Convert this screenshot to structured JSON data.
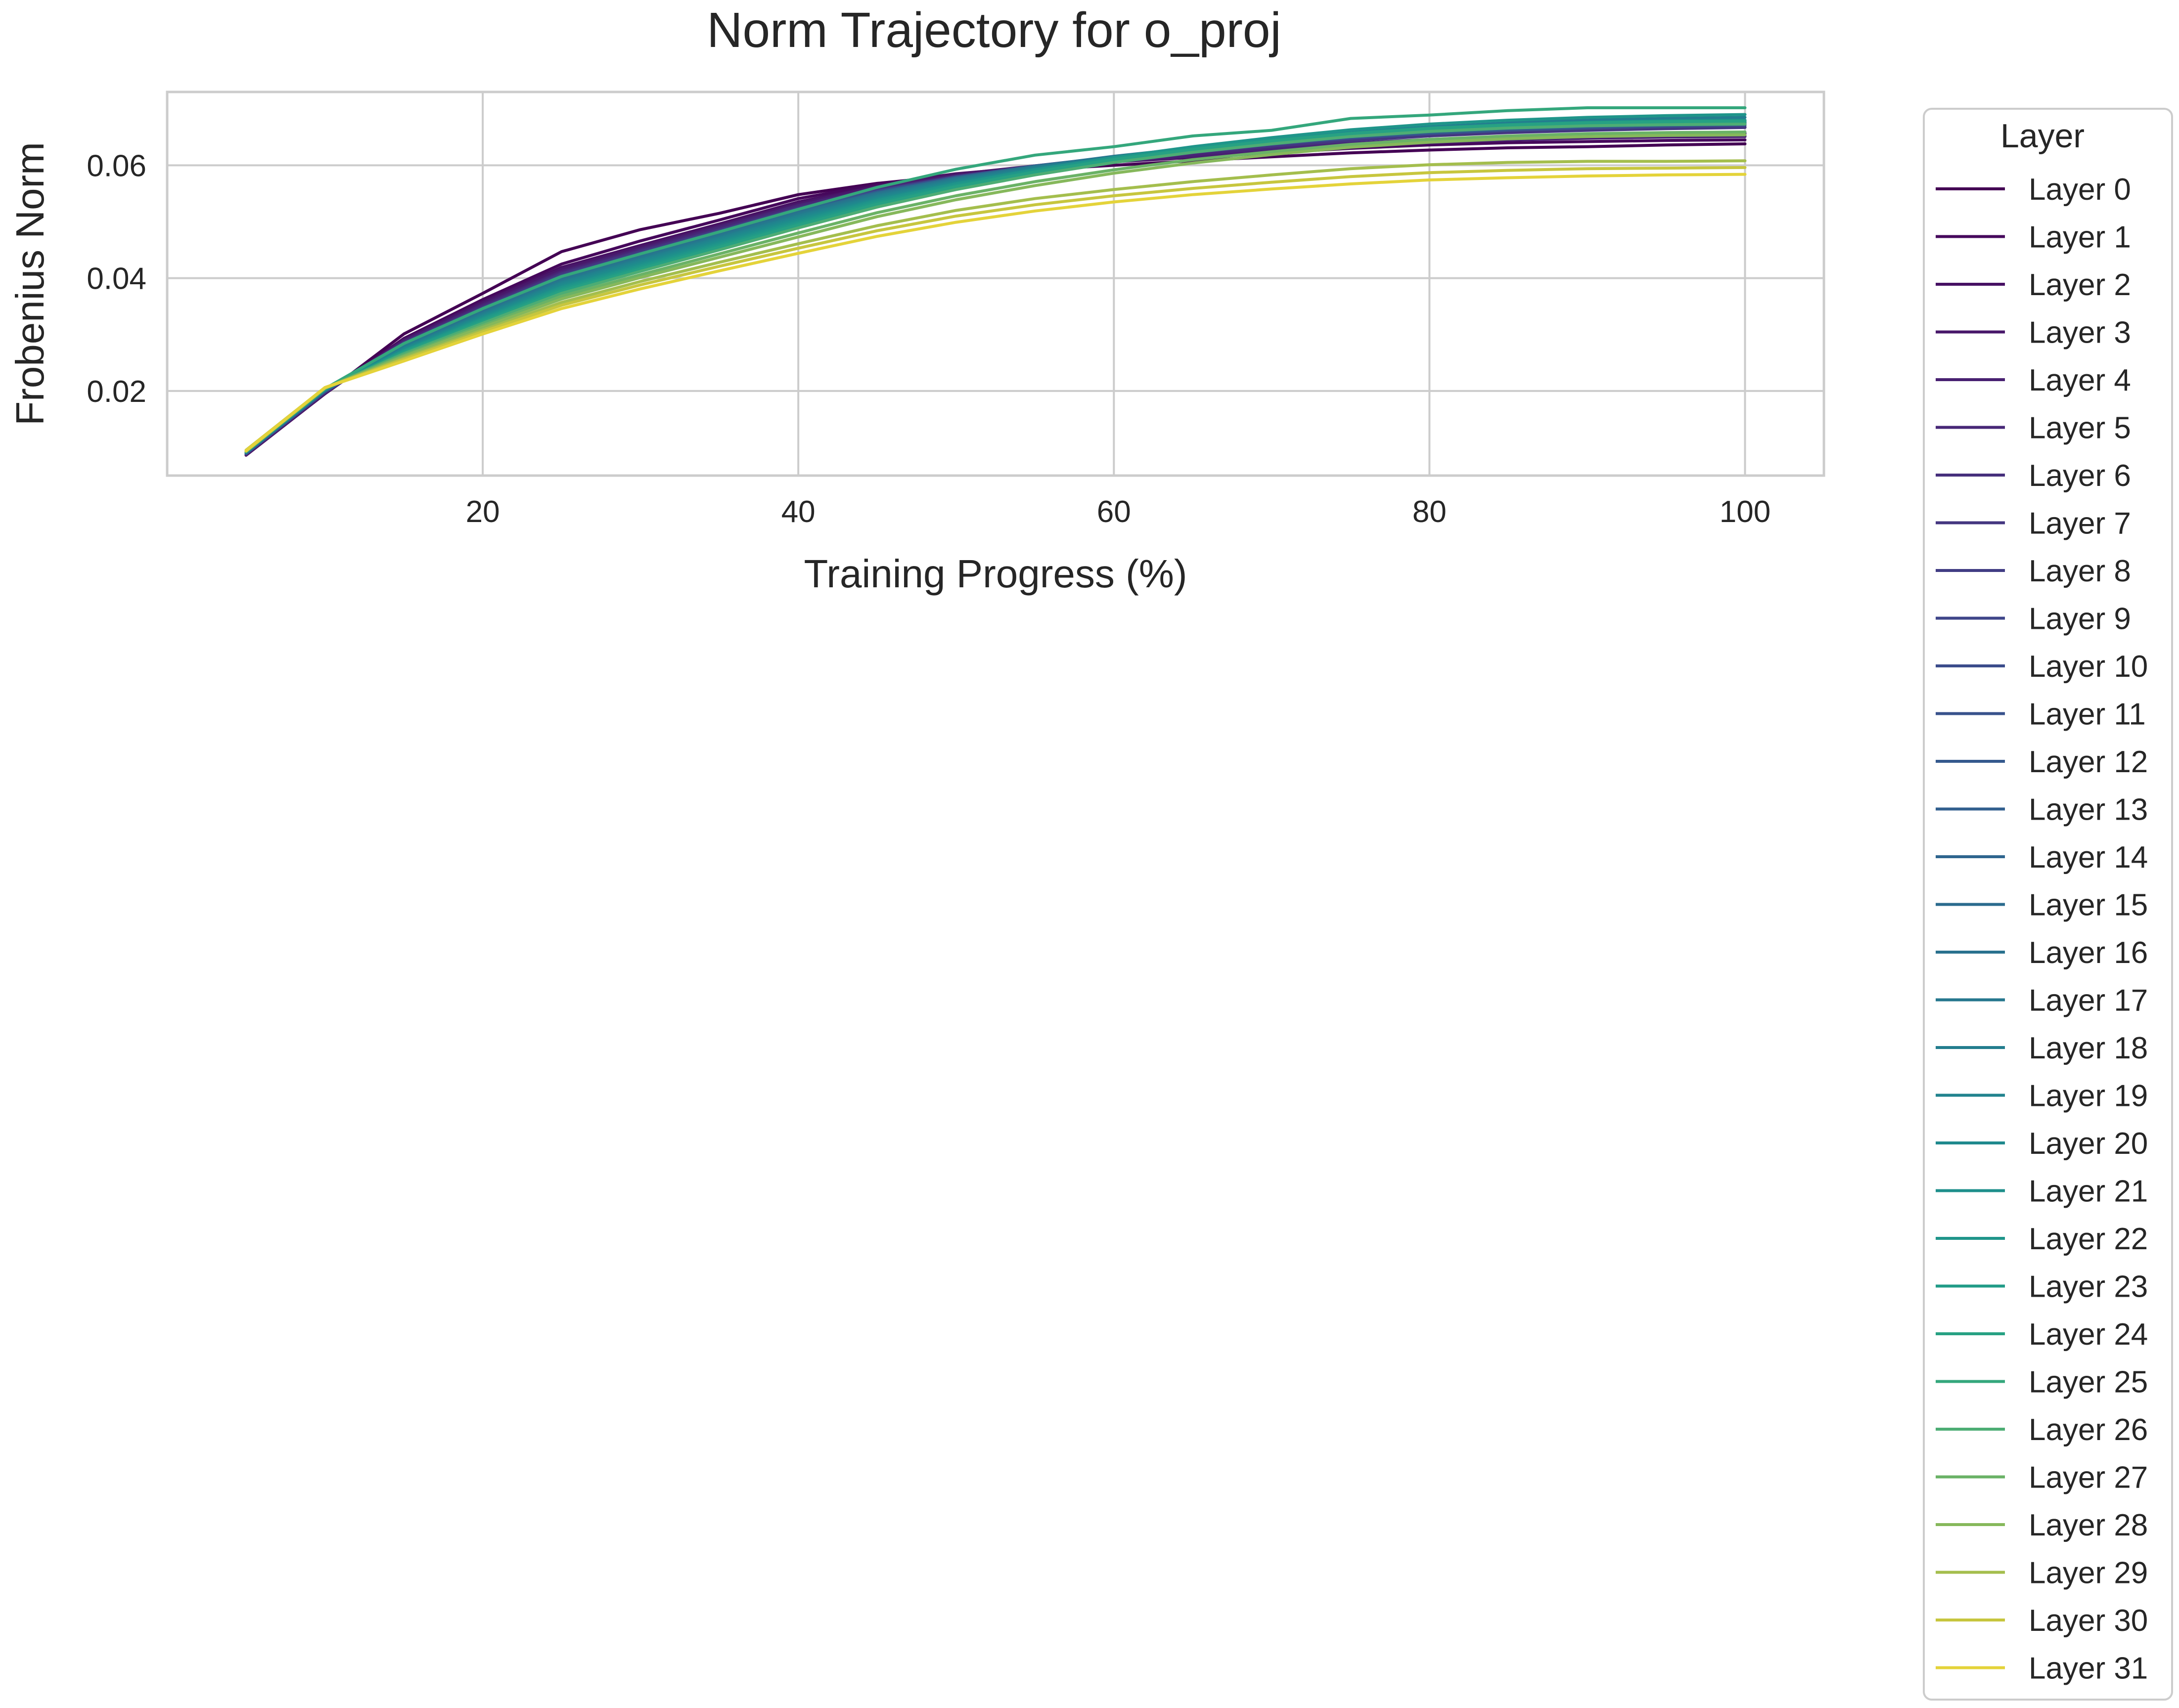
{
  "chart_data": {
    "type": "line",
    "title": "Norm Trajectory for o_proj",
    "xlabel": "Training Progress (%)",
    "ylabel": "Frobenius Norm",
    "xlim": [
      0,
      105
    ],
    "ylim": [
      0.005,
      0.073
    ],
    "xticks": [
      20,
      40,
      60,
      80,
      100
    ],
    "yticks": [
      0.02,
      0.04,
      0.06
    ],
    "xtick_labels": [
      "20",
      "40",
      "60",
      "80",
      "100"
    ],
    "ytick_labels": [
      "0.02",
      "0.04",
      "0.06"
    ],
    "grid": true,
    "legend": {
      "title": "Layer",
      "placement": "outside-right"
    },
    "x": [
      5,
      10,
      15,
      20,
      25,
      30,
      35,
      40,
      45,
      50,
      55,
      60,
      65,
      70,
      75,
      80,
      85,
      90,
      95,
      100
    ],
    "series": [
      {
        "name": "Layer 0",
        "color": "#440154",
        "values": [
          0.0087,
          0.0195,
          0.0301,
          0.0373,
          0.0447,
          0.0486,
          0.0515,
          0.0548,
          0.0568,
          0.0582,
          0.0592,
          0.06,
          0.0608,
          0.0615,
          0.0622,
          0.0627,
          0.0631,
          0.0633,
          0.0636,
          0.0638
        ]
      },
      {
        "name": "Layer 1",
        "color": "#46085c",
        "values": [
          0.0086,
          0.0195,
          0.0293,
          0.0362,
          0.0425,
          0.0466,
          0.0503,
          0.0541,
          0.0566,
          0.0585,
          0.0597,
          0.0606,
          0.0614,
          0.0622,
          0.063,
          0.0636,
          0.064,
          0.0642,
          0.0644,
          0.0645
        ]
      },
      {
        "name": "Layer 2",
        "color": "#471063",
        "values": [
          0.0088,
          0.0196,
          0.0291,
          0.0358,
          0.0419,
          0.0458,
          0.0496,
          0.0535,
          0.0563,
          0.0584,
          0.0598,
          0.0609,
          0.0619,
          0.0628,
          0.0636,
          0.0642,
          0.0647,
          0.065,
          0.0652,
          0.0653
        ]
      },
      {
        "name": "Layer 3",
        "color": "#48186a",
        "values": [
          0.0087,
          0.0196,
          0.029,
          0.0356,
          0.0416,
          0.0455,
          0.0493,
          0.0532,
          0.0562,
          0.0584,
          0.0599,
          0.0611,
          0.0621,
          0.063,
          0.0638,
          0.0645,
          0.065,
          0.0653,
          0.0655,
          0.0656
        ]
      },
      {
        "name": "Layer 4",
        "color": "#482071",
        "values": [
          0.0088,
          0.0197,
          0.0288,
          0.0353,
          0.0412,
          0.0452,
          0.0491,
          0.0529,
          0.0559,
          0.0581,
          0.0595,
          0.0606,
          0.0616,
          0.0625,
          0.0634,
          0.064,
          0.0645,
          0.0648,
          0.065,
          0.0651
        ]
      },
      {
        "name": "Layer 5",
        "color": "#472777",
        "values": [
          0.0089,
          0.0197,
          0.0287,
          0.0351,
          0.041,
          0.045,
          0.0489,
          0.0528,
          0.0558,
          0.0581,
          0.0597,
          0.0609,
          0.062,
          0.063,
          0.0639,
          0.0646,
          0.0651,
          0.0654,
          0.0656,
          0.0657
        ]
      },
      {
        "name": "Layer 6",
        "color": "#462f7c",
        "values": [
          0.0089,
          0.0198,
          0.0286,
          0.0349,
          0.0408,
          0.0448,
          0.0486,
          0.0525,
          0.0556,
          0.058,
          0.0598,
          0.0612,
          0.0624,
          0.0635,
          0.0645,
          0.0653,
          0.0659,
          0.0663,
          0.0666,
          0.0668
        ]
      },
      {
        "name": "Layer 7",
        "color": "#443680",
        "values": [
          0.0088,
          0.0198,
          0.0285,
          0.0348,
          0.0407,
          0.0447,
          0.0485,
          0.0524,
          0.0555,
          0.0579,
          0.0597,
          0.0611,
          0.0623,
          0.0634,
          0.0644,
          0.0652,
          0.0658,
          0.0662,
          0.0665,
          0.0667
        ]
      },
      {
        "name": "Layer 8",
        "color": "#413d84",
        "values": [
          0.009,
          0.0199,
          0.0284,
          0.0347,
          0.0405,
          0.0445,
          0.0484,
          0.0523,
          0.0555,
          0.058,
          0.0599,
          0.0614,
          0.0627,
          0.0639,
          0.065,
          0.0658,
          0.0664,
          0.0668,
          0.0671,
          0.0673
        ]
      },
      {
        "name": "Layer 9",
        "color": "#3e4589",
        "values": [
          0.0089,
          0.0199,
          0.0283,
          0.0346,
          0.0404,
          0.0444,
          0.0483,
          0.0522,
          0.0554,
          0.0579,
          0.0598,
          0.0613,
          0.0626,
          0.0638,
          0.0649,
          0.0657,
          0.0663,
          0.0667,
          0.067,
          0.0672
        ]
      },
      {
        "name": "Layer 10",
        "color": "#3b4c8b",
        "values": [
          0.009,
          0.0199,
          0.0283,
          0.0345,
          0.0403,
          0.0443,
          0.0482,
          0.0521,
          0.0553,
          0.0578,
          0.0597,
          0.0612,
          0.0625,
          0.0637,
          0.0648,
          0.0656,
          0.0662,
          0.0666,
          0.0669,
          0.0671
        ]
      },
      {
        "name": "Layer 11",
        "color": "#38528c",
        "values": [
          0.0089,
          0.02,
          0.0282,
          0.0344,
          0.0402,
          0.0442,
          0.0481,
          0.052,
          0.0553,
          0.0579,
          0.0599,
          0.0615,
          0.0629,
          0.0641,
          0.0652,
          0.066,
          0.0666,
          0.067,
          0.0673,
          0.0675
        ]
      },
      {
        "name": "Layer 12",
        "color": "#34598d",
        "values": [
          0.009,
          0.02,
          0.0282,
          0.0344,
          0.0401,
          0.0441,
          0.048,
          0.0519,
          0.0552,
          0.0578,
          0.0598,
          0.0614,
          0.0628,
          0.064,
          0.0651,
          0.0659,
          0.0665,
          0.0669,
          0.0672,
          0.0674
        ]
      },
      {
        "name": "Layer 13",
        "color": "#315f8e",
        "values": [
          0.0091,
          0.02,
          0.0281,
          0.0343,
          0.04,
          0.044,
          0.0479,
          0.0518,
          0.0551,
          0.0577,
          0.0597,
          0.0613,
          0.0627,
          0.0639,
          0.065,
          0.0658,
          0.0664,
          0.0668,
          0.0671,
          0.0673
        ]
      },
      {
        "name": "Layer 14",
        "color": "#2e658e",
        "values": [
          0.009,
          0.0201,
          0.0281,
          0.0342,
          0.04,
          0.0439,
          0.0478,
          0.0518,
          0.0551,
          0.0577,
          0.0598,
          0.0615,
          0.0629,
          0.0642,
          0.0653,
          0.0662,
          0.0668,
          0.0672,
          0.0675,
          0.0677
        ]
      },
      {
        "name": "Layer 15",
        "color": "#2b6b8e",
        "values": [
          0.0091,
          0.0201,
          0.028,
          0.0341,
          0.0399,
          0.0439,
          0.0478,
          0.0517,
          0.055,
          0.0576,
          0.0597,
          0.0614,
          0.0628,
          0.0641,
          0.0652,
          0.0661,
          0.0667,
          0.0671,
          0.0674,
          0.0676
        ]
      },
      {
        "name": "Layer 16",
        "color": "#29718e",
        "values": [
          0.0091,
          0.0201,
          0.0279,
          0.034,
          0.0398,
          0.0438,
          0.0477,
          0.0516,
          0.055,
          0.0577,
          0.0598,
          0.0616,
          0.0631,
          0.0644,
          0.0656,
          0.0665,
          0.0671,
          0.0675,
          0.0678,
          0.068
        ]
      },
      {
        "name": "Layer 17",
        "color": "#26778e",
        "values": [
          0.0092,
          0.0202,
          0.0278,
          0.0338,
          0.0396,
          0.0436,
          0.0475,
          0.0514,
          0.0548,
          0.0575,
          0.0597,
          0.0615,
          0.063,
          0.0643,
          0.0655,
          0.0664,
          0.067,
          0.0674,
          0.0677,
          0.0679
        ]
      },
      {
        "name": "Layer 18",
        "color": "#237d8e",
        "values": [
          0.0091,
          0.0202,
          0.0277,
          0.0336,
          0.0393,
          0.0433,
          0.0472,
          0.0511,
          0.0546,
          0.0574,
          0.0596,
          0.0615,
          0.0631,
          0.0645,
          0.0658,
          0.0668,
          0.0675,
          0.068,
          0.0683,
          0.0685
        ]
      },
      {
        "name": "Layer 19",
        "color": "#21838e",
        "values": [
          0.0092,
          0.0202,
          0.0275,
          0.0334,
          0.0391,
          0.0431,
          0.047,
          0.0509,
          0.0544,
          0.0572,
          0.0594,
          0.0613,
          0.0629,
          0.0642,
          0.0654,
          0.0663,
          0.0669,
          0.0673,
          0.0676,
          0.0677
        ]
      },
      {
        "name": "Layer 20",
        "color": "#1f898d",
        "values": [
          0.0092,
          0.0203,
          0.0274,
          0.0332,
          0.0388,
          0.0428,
          0.0467,
          0.0506,
          0.0541,
          0.057,
          0.0593,
          0.0613,
          0.063,
          0.0644,
          0.0657,
          0.0666,
          0.0672,
          0.0676,
          0.0679,
          0.068
        ]
      },
      {
        "name": "Layer 21",
        "color": "#1e8f8b",
        "values": [
          0.0093,
          0.0203,
          0.0272,
          0.033,
          0.0385,
          0.0425,
          0.0464,
          0.0503,
          0.0539,
          0.0568,
          0.0592,
          0.0612,
          0.0629,
          0.0643,
          0.0656,
          0.0665,
          0.0671,
          0.0675,
          0.0678,
          0.0679
        ]
      },
      {
        "name": "Layer 22",
        "color": "#1f958a",
        "values": [
          0.0092,
          0.0203,
          0.0271,
          0.0328,
          0.0383,
          0.0422,
          0.0461,
          0.05,
          0.0537,
          0.0567,
          0.0592,
          0.0614,
          0.0633,
          0.0649,
          0.0663,
          0.0673,
          0.068,
          0.0685,
          0.0688,
          0.069
        ]
      },
      {
        "name": "Layer 23",
        "color": "#219b87",
        "values": [
          0.0093,
          0.0204,
          0.027,
          0.0326,
          0.038,
          0.0419,
          0.0458,
          0.0497,
          0.0534,
          0.0564,
          0.0589,
          0.0611,
          0.0629,
          0.0644,
          0.0657,
          0.0666,
          0.0672,
          0.0676,
          0.0678,
          0.0679
        ]
      },
      {
        "name": "Layer 24",
        "color": "#27a183",
        "values": [
          0.0093,
          0.0204,
          0.0268,
          0.0323,
          0.0377,
          0.0416,
          0.0455,
          0.0494,
          0.0531,
          0.0562,
          0.0588,
          0.061,
          0.0628,
          0.0643,
          0.0656,
          0.0665,
          0.0671,
          0.0675,
          0.0677,
          0.0678
        ]
      },
      {
        "name": "Layer 25",
        "color": "#34a77c",
        "values": [
          0.0094,
          0.0204,
          0.0284,
          0.0346,
          0.0403,
          0.0443,
          0.0482,
          0.0522,
          0.0561,
          0.0593,
          0.0618,
          0.0633,
          0.0652,
          0.0662,
          0.0683,
          0.0689,
          0.0697,
          0.0702,
          0.0702,
          0.0702
        ]
      },
      {
        "name": "Layer 26",
        "color": "#4dad74",
        "values": [
          0.0093,
          0.0205,
          0.0266,
          0.032,
          0.0373,
          0.0412,
          0.045,
          0.0489,
          0.0526,
          0.0557,
          0.0583,
          0.0605,
          0.0623,
          0.0638,
          0.0651,
          0.066,
          0.0666,
          0.067,
          0.0672,
          0.0673
        ]
      },
      {
        "name": "Layer 27",
        "color": "#6ab266",
        "values": [
          0.0094,
          0.0205,
          0.0263,
          0.0316,
          0.0368,
          0.0406,
          0.0443,
          0.048,
          0.0516,
          0.0546,
          0.0571,
          0.0592,
          0.061,
          0.0624,
          0.0637,
          0.0646,
          0.0652,
          0.0656,
          0.0658,
          0.0659
        ]
      },
      {
        "name": "Layer 28",
        "color": "#86b85b",
        "values": [
          0.0094,
          0.0205,
          0.0261,
          0.0313,
          0.0363,
          0.0401,
          0.0437,
          0.0473,
          0.0509,
          0.0539,
          0.0564,
          0.0586,
          0.0604,
          0.0619,
          0.0632,
          0.0641,
          0.0647,
          0.0651,
          0.0653,
          0.0654
        ]
      },
      {
        "name": "Layer 29",
        "color": "#a4be4d",
        "values": [
          0.0093,
          0.0205,
          0.0258,
          0.0308,
          0.0357,
          0.0394,
          0.0428,
          0.0461,
          0.0493,
          0.052,
          0.0541,
          0.0557,
          0.0571,
          0.0583,
          0.0594,
          0.0601,
          0.0605,
          0.0607,
          0.0607,
          0.0608
        ]
      },
      {
        "name": "Layer 30",
        "color": "#c7c63e",
        "values": [
          0.0095,
          0.0206,
          0.0256,
          0.0305,
          0.0352,
          0.0388,
          0.0421,
          0.0453,
          0.0484,
          0.051,
          0.053,
          0.0546,
          0.0559,
          0.057,
          0.058,
          0.0587,
          0.0591,
          0.0594,
          0.0595,
          0.0596
        ]
      },
      {
        "name": "Layer 31",
        "color": "#e4d33a",
        "values": [
          0.0094,
          0.0206,
          0.0253,
          0.0301,
          0.0346,
          0.0381,
          0.0413,
          0.0444,
          0.0474,
          0.0499,
          0.0519,
          0.0535,
          0.0548,
          0.0558,
          0.0567,
          0.0574,
          0.0578,
          0.0581,
          0.0583,
          0.0584
        ]
      }
    ]
  }
}
